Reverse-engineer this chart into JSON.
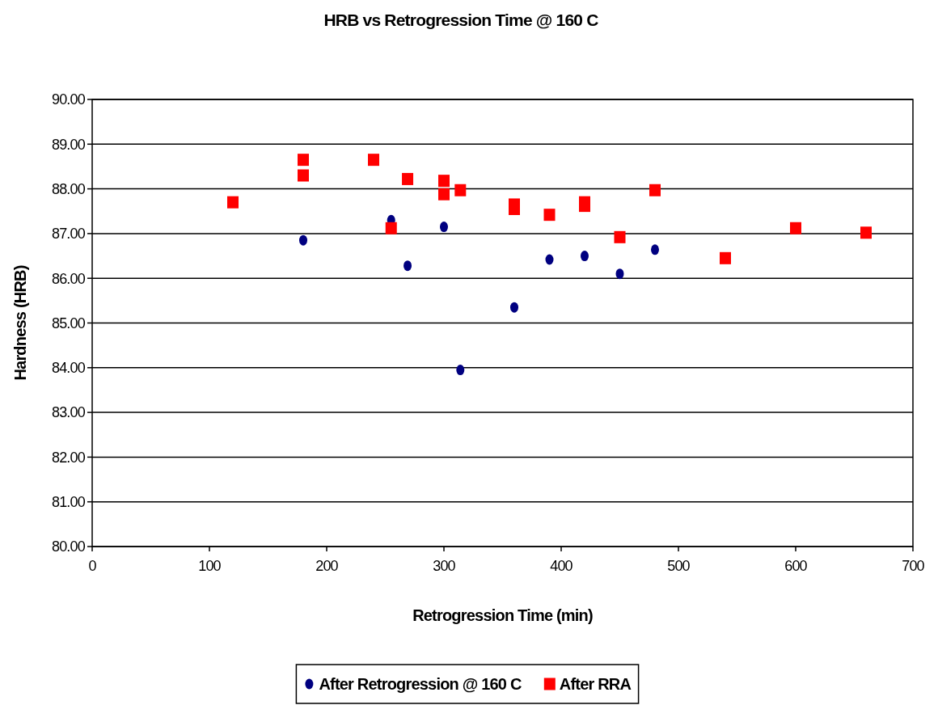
{
  "chart_data": {
    "type": "scatter",
    "title": "HRB vs Retrogression Time @ 160 C",
    "xlabel": "Retrogression Time (min)",
    "ylabel": "Hardness (HRB)",
    "xlim": [
      0,
      700
    ],
    "xticks": [
      0,
      100,
      200,
      300,
      400,
      500,
      600,
      700
    ],
    "ylim": [
      80,
      90
    ],
    "yticks": [
      {
        "value": 80,
        "label": "80.00"
      },
      {
        "value": 81,
        "label": "81.00"
      },
      {
        "value": 82,
        "label": "82.00"
      },
      {
        "value": 83,
        "label": "83.00"
      },
      {
        "value": 84,
        "label": "84.00"
      },
      {
        "value": 85,
        "label": "85.00"
      },
      {
        "value": 86,
        "label": "86.00"
      },
      {
        "value": 87,
        "label": "87.00"
      },
      {
        "value": 88,
        "label": "88.00"
      },
      {
        "value": 89,
        "label": "89.00"
      },
      {
        "value": 90,
        "label": "90.00"
      }
    ],
    "grid": "y",
    "legend": "bottom",
    "series": [
      {
        "name": "After Retrogression @ 160 C",
        "color": "#000080",
        "marker": "circle",
        "x": [
          180,
          255,
          269,
          300,
          314,
          360,
          390,
          420,
          450,
          480
        ],
        "values": [
          86.85,
          87.3,
          86.28,
          87.15,
          83.95,
          85.35,
          86.42,
          86.5,
          86.1,
          86.64
        ]
      },
      {
        "name": "After RRA",
        "color": "#ff0000",
        "marker": "square",
        "x": [
          120,
          180,
          180,
          240,
          255,
          269,
          300,
          300,
          314,
          360,
          360,
          390,
          420,
          420,
          450,
          480,
          540,
          600,
          660
        ],
        "values": [
          87.7,
          88.65,
          88.3,
          88.65,
          87.12,
          88.22,
          88.18,
          87.88,
          87.97,
          87.65,
          87.55,
          87.42,
          87.7,
          87.62,
          86.92,
          87.97,
          86.45,
          87.12,
          87.02
        ]
      }
    ]
  }
}
